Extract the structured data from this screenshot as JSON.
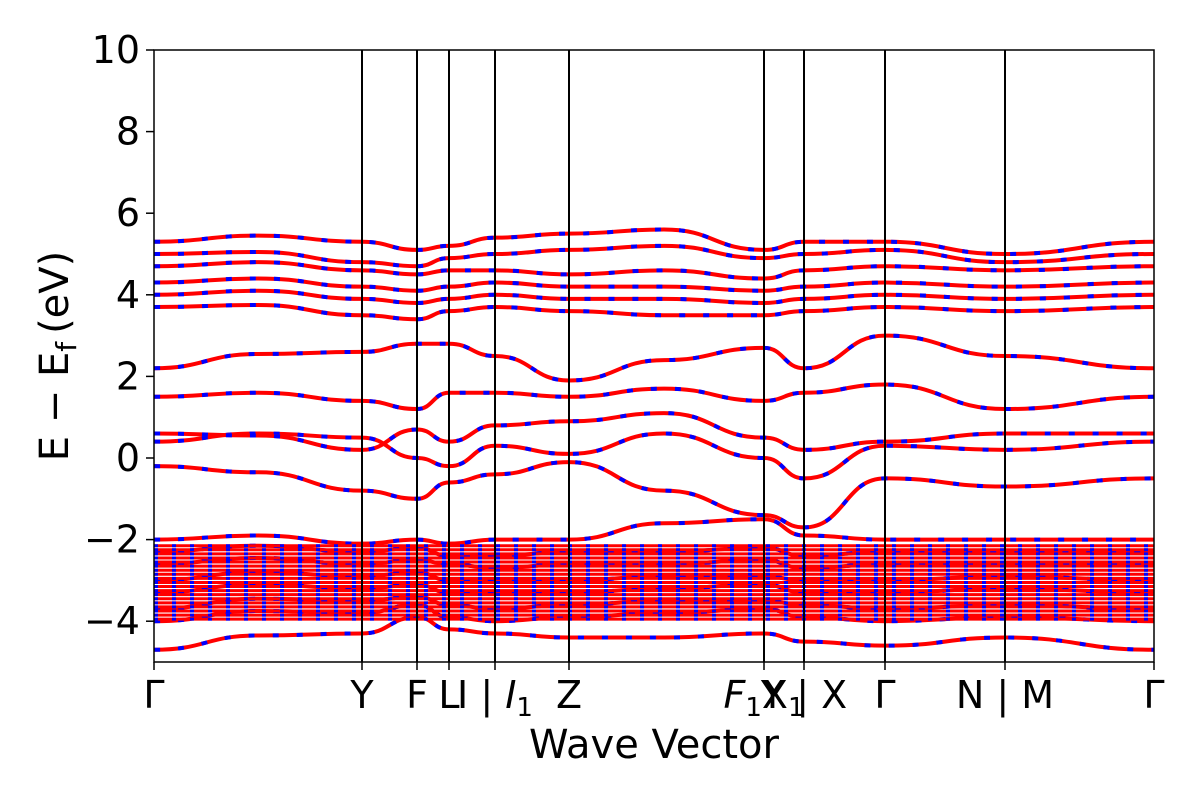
{
  "chart_data": {
    "type": "line",
    "title": "",
    "xlabel": "Wave Vector",
    "ylabel_main": "E − E",
    "ylabel_sub": "f",
    "ylabel_unit": "(eV)",
    "ylim": [
      -5,
      10
    ],
    "yticks": [
      -4,
      -2,
      0,
      2,
      4,
      6,
      8,
      10
    ],
    "ytick_labels": [
      "−4",
      "−2",
      "0",
      "2",
      "4",
      "6",
      "8",
      "10"
    ],
    "xlim": [
      0,
      1
    ],
    "kpoints": [
      {
        "x": 0.0,
        "label": "Γ",
        "italic": false,
        "sub": ""
      },
      {
        "x": 0.208,
        "label": "Y",
        "italic": false,
        "sub": ""
      },
      {
        "x": 0.263,
        "label": "F",
        "italic": false,
        "sub": ""
      },
      {
        "x": 0.295,
        "label": "L",
        "italic": false,
        "sub": ""
      },
      {
        "x": 0.341,
        "label": "I | ",
        "italic": false,
        "sub": "",
        "after_label": "I",
        "after_sub": "1"
      },
      {
        "x": 0.415,
        "label": "Z",
        "italic": false,
        "sub": ""
      },
      {
        "x": 0.61,
        "label": "F",
        "italic": true,
        "sub": "1",
        "after_label": "X",
        "after_sub": "1"
      },
      {
        "x": 0.65,
        "label": "Y",
        "italic": false,
        "sub": "",
        "after_label": " | X",
        "after_sub": ""
      },
      {
        "x": 0.731,
        "label": "Γ",
        "italic": false,
        "sub": ""
      },
      {
        "x": 0.851,
        "label": "N | M",
        "italic": false,
        "sub": ""
      },
      {
        "x": 1.0,
        "label": "Γ",
        "italic": false,
        "sub": ""
      }
    ],
    "series": [
      {
        "color": "#ff0000",
        "style": "solid",
        "values": [
          [
            -4.7,
            -4.3,
            -3.9,
            -4.2,
            -4.3,
            -4.4,
            -4.4,
            -4.3,
            -4.5,
            -4.6,
            -4.4,
            -4.7
          ],
          [
            -4.0,
            -3.8,
            -3.6,
            -3.9,
            -4.0,
            -3.9,
            -3.8,
            -3.7,
            -3.9,
            -4.0,
            -3.9,
            -4.0
          ],
          [
            -3.7,
            -3.5,
            -3.4,
            -3.6,
            -3.7,
            -3.6,
            -3.5,
            -3.5,
            -3.6,
            -3.7,
            -3.6,
            -3.7
          ],
          [
            -3.3,
            -3.2,
            -3.1,
            -3.3,
            -3.3,
            -3.3,
            -3.2,
            -3.1,
            -3.3,
            -3.3,
            -3.2,
            -3.3
          ],
          [
            -3.0,
            -2.9,
            -2.8,
            -3.0,
            -3.0,
            -3.0,
            -2.9,
            -2.9,
            -3.0,
            -3.0,
            -2.9,
            -3.0
          ],
          [
            -2.6,
            -2.6,
            -2.5,
            -2.6,
            -2.7,
            -2.6,
            -2.6,
            -2.5,
            -2.7,
            -2.6,
            -2.6,
            -2.6
          ],
          [
            -2.3,
            -2.3,
            -2.2,
            -2.4,
            -2.4,
            -2.3,
            -2.3,
            -2.2,
            -2.4,
            -2.3,
            -2.3,
            -2.3
          ],
          [
            -2.0,
            -2.1,
            -2.0,
            -2.1,
            -2.0,
            -2.0,
            -1.6,
            -1.5,
            -1.9,
            -2.0,
            -2.0,
            -2.0
          ],
          [
            -0.2,
            -0.8,
            -1.0,
            -0.6,
            -0.4,
            -0.1,
            -0.8,
            -1.4,
            -1.7,
            -0.5,
            -0.7,
            -0.5
          ],
          [
            0.4,
            0.5,
            0.0,
            -0.2,
            0.3,
            0.1,
            0.6,
            0.0,
            -0.5,
            0.3,
            0.2,
            0.4
          ],
          [
            0.6,
            0.2,
            0.7,
            0.4,
            0.8,
            0.9,
            1.1,
            0.5,
            0.2,
            0.4,
            0.6,
            0.6
          ],
          [
            1.5,
            1.4,
            1.2,
            1.6,
            1.6,
            1.5,
            1.7,
            1.4,
            1.6,
            1.8,
            1.2,
            1.5
          ],
          [
            2.2,
            2.6,
            2.8,
            2.8,
            2.5,
            1.9,
            2.4,
            2.7,
            2.2,
            3.0,
            2.5,
            2.2
          ],
          [
            3.7,
            3.5,
            3.4,
            3.6,
            3.7,
            3.6,
            3.5,
            3.5,
            3.6,
            3.7,
            3.6,
            3.7
          ],
          [
            4.0,
            3.9,
            3.8,
            3.9,
            4.0,
            3.9,
            3.9,
            3.8,
            3.9,
            4.0,
            3.9,
            4.0
          ],
          [
            4.3,
            4.2,
            4.1,
            4.2,
            4.3,
            4.2,
            4.2,
            4.1,
            4.2,
            4.3,
            4.2,
            4.3
          ],
          [
            4.7,
            4.6,
            4.5,
            4.6,
            4.6,
            4.5,
            4.6,
            4.4,
            4.6,
            4.7,
            4.6,
            4.7
          ],
          [
            5.0,
            4.8,
            4.7,
            4.9,
            5.0,
            5.1,
            5.2,
            4.9,
            5.0,
            5.1,
            4.8,
            5.0
          ],
          [
            5.3,
            5.3,
            5.1,
            5.2,
            5.4,
            5.5,
            5.6,
            5.1,
            5.3,
            5.3,
            5.0,
            5.3
          ]
        ]
      }
    ],
    "grid": false,
    "legend": "none"
  }
}
